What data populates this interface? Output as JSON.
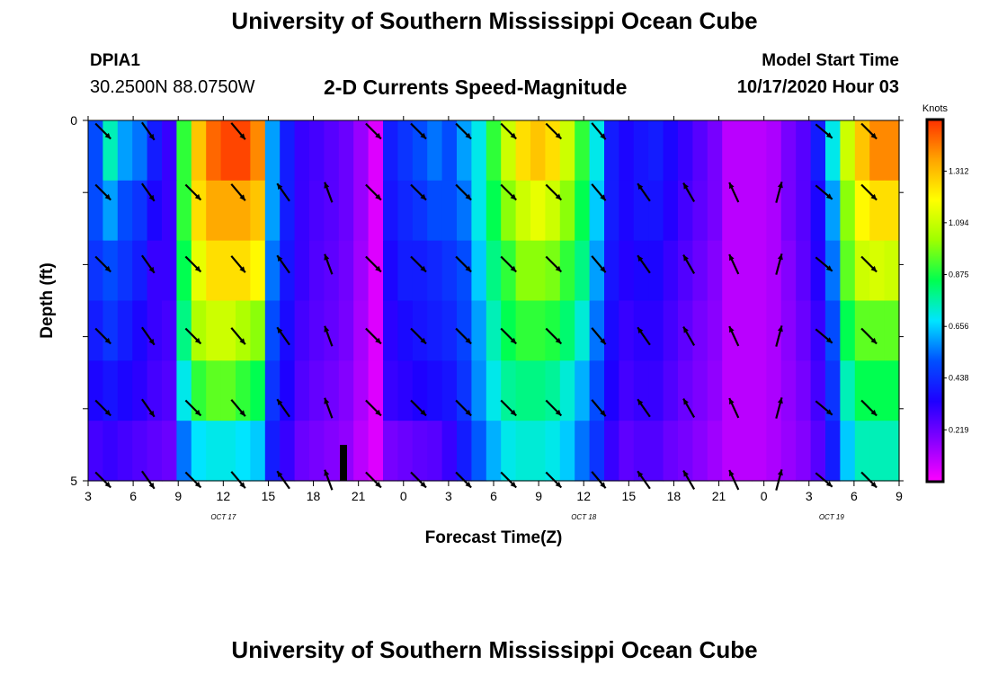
{
  "header": {
    "title": "University of Southern Mississippi Ocean Cube",
    "station_id": "DPIA1",
    "station_coords": "30.2500N 88.0750W",
    "chart_title": "2-D Currents Speed-Magnitude",
    "start_label": "Model Start Time",
    "start_value": "10/17/2020 Hour 03"
  },
  "footer": {
    "title": "University of Southern Mississippi Ocean Cube"
  },
  "colors": {
    "scale": [
      "#ff00ff",
      "#8a00ff",
      "#1e00ff",
      "#0050ff",
      "#00e5ff",
      "#00ff50",
      "#9eff00",
      "#ffff00",
      "#ffa500",
      "#ff3000"
    ],
    "arrow": "#000000",
    "marker": "#000000"
  },
  "chart_data": {
    "type": "heatmap",
    "title": "2-D Currents Speed-Magnitude",
    "xlabel": "Forecast Time(Z)",
    "ylabel": "Depth (ft)",
    "units": "Knots",
    "x_tick_labels": [
      "3",
      "6",
      "9",
      "12",
      "15",
      "18",
      "21",
      "0",
      "3",
      "6",
      "9",
      "12",
      "15",
      "18",
      "21",
      "0",
      "3",
      "6",
      "9"
    ],
    "x_tick_hours": [
      0,
      3,
      6,
      9,
      12,
      15,
      18,
      21,
      24,
      27,
      30,
      33,
      36,
      39,
      42,
      45,
      48,
      51,
      54
    ],
    "x_range_hours": [
      0,
      54
    ],
    "date_labels": [
      {
        "text": "OCT 17",
        "hour": 9
      },
      {
        "text": "OCT 18",
        "hour": 33
      },
      {
        "text": "OCT 19",
        "hour": 49.5
      }
    ],
    "y_tick_labels": [
      "0",
      "5"
    ],
    "y_range": [
      0,
      5
    ],
    "colorbar_ticks": [
      0.219,
      0.438,
      0.656,
      0.875,
      1.094,
      1.312
    ],
    "colorbar_tick_labels": [
      "0.219",
      "0.438",
      "0.656",
      "0.875",
      "1.094",
      "1.312"
    ],
    "colorbar_range": [
      0,
      1.53
    ],
    "now_marker_hour": 17,
    "depth_layers": 5,
    "time_step_hours": 1,
    "speed_rows": [
      [
        0.5,
        0.75,
        0.6,
        0.55,
        0.4,
        0.3,
        0.9,
        1.3,
        1.45,
        1.5,
        1.5,
        1.4,
        0.6,
        0.4,
        0.3,
        0.28,
        0.25,
        0.22,
        0.15,
        0.05,
        0.4,
        0.45,
        0.5,
        0.55,
        0.5,
        0.6,
        0.7,
        0.9,
        1.1,
        1.25,
        1.3,
        1.25,
        1.1,
        0.9,
        0.7,
        0.4,
        0.35,
        0.38,
        0.4,
        0.35,
        0.3,
        0.25,
        0.2,
        0.1,
        0.1,
        0.1,
        0.12,
        0.2,
        0.25,
        0.4,
        0.7,
        1.1,
        1.3,
        1.4,
        1.4
      ],
      [
        0.5,
        0.6,
        0.5,
        0.45,
        0.35,
        0.3,
        0.9,
        1.25,
        1.35,
        1.35,
        1.35,
        1.3,
        0.6,
        0.4,
        0.3,
        0.27,
        0.25,
        0.22,
        0.15,
        0.05,
        0.38,
        0.42,
        0.45,
        0.5,
        0.5,
        0.55,
        0.7,
        0.85,
        1.0,
        1.1,
        1.15,
        1.1,
        1.0,
        0.85,
        0.65,
        0.4,
        0.35,
        0.38,
        0.38,
        0.33,
        0.28,
        0.24,
        0.2,
        0.1,
        0.1,
        0.1,
        0.12,
        0.2,
        0.25,
        0.35,
        0.6,
        1.0,
        1.2,
        1.25,
        1.25
      ],
      [
        0.45,
        0.5,
        0.45,
        0.4,
        0.3,
        0.3,
        0.85,
        1.15,
        1.25,
        1.25,
        1.25,
        1.2,
        0.55,
        0.38,
        0.3,
        0.26,
        0.24,
        0.21,
        0.14,
        0.05,
        0.35,
        0.4,
        0.4,
        0.42,
        0.45,
        0.5,
        0.65,
        0.8,
        0.9,
        1.0,
        1.0,
        0.98,
        0.9,
        0.8,
        0.6,
        0.38,
        0.33,
        0.35,
        0.35,
        0.3,
        0.26,
        0.22,
        0.18,
        0.1,
        0.1,
        0.1,
        0.12,
        0.18,
        0.24,
        0.33,
        0.55,
        0.95,
        1.1,
        1.12,
        1.1
      ],
      [
        0.4,
        0.45,
        0.4,
        0.35,
        0.3,
        0.28,
        0.8,
        1.05,
        1.1,
        1.1,
        1.05,
        1.0,
        0.5,
        0.36,
        0.28,
        0.25,
        0.23,
        0.2,
        0.13,
        0.05,
        0.32,
        0.36,
        0.38,
        0.4,
        0.42,
        0.48,
        0.6,
        0.75,
        0.85,
        0.9,
        0.9,
        0.88,
        0.82,
        0.72,
        0.55,
        0.36,
        0.3,
        0.32,
        0.32,
        0.28,
        0.24,
        0.2,
        0.17,
        0.1,
        0.1,
        0.1,
        0.12,
        0.17,
        0.22,
        0.3,
        0.5,
        0.85,
        0.95,
        0.95,
        0.95
      ],
      [
        0.35,
        0.38,
        0.35,
        0.32,
        0.28,
        0.26,
        0.7,
        0.9,
        0.95,
        0.95,
        0.9,
        0.85,
        0.45,
        0.34,
        0.26,
        0.23,
        0.21,
        0.18,
        0.12,
        0.05,
        0.3,
        0.32,
        0.34,
        0.36,
        0.38,
        0.45,
        0.58,
        0.7,
        0.78,
        0.8,
        0.8,
        0.78,
        0.72,
        0.62,
        0.5,
        0.34,
        0.28,
        0.3,
        0.3,
        0.26,
        0.22,
        0.19,
        0.16,
        0.1,
        0.1,
        0.1,
        0.12,
        0.16,
        0.2,
        0.28,
        0.45,
        0.75,
        0.85,
        0.85,
        0.85
      ],
      [
        0.28,
        0.3,
        0.28,
        0.26,
        0.24,
        0.22,
        0.55,
        0.68,
        0.7,
        0.7,
        0.68,
        0.65,
        0.4,
        0.3,
        0.22,
        0.2,
        0.18,
        0.16,
        0.1,
        0.05,
        0.2,
        0.22,
        0.24,
        0.25,
        0.3,
        0.4,
        0.52,
        0.62,
        0.7,
        0.72,
        0.72,
        0.7,
        0.65,
        0.55,
        0.45,
        0.3,
        0.24,
        0.26,
        0.26,
        0.22,
        0.2,
        0.17,
        0.14,
        0.1,
        0.1,
        0.1,
        0.12,
        0.15,
        0.18,
        0.25,
        0.4,
        0.65,
        0.75,
        0.75,
        0.75
      ]
    ],
    "vectors": [
      {
        "hour": 1,
        "dir": 135
      },
      {
        "hour": 4,
        "dir": 145
      },
      {
        "hour": 7,
        "dir": 135
      },
      {
        "hour": 10,
        "dir": 140
      },
      {
        "hour": 13,
        "dir": 325
      },
      {
        "hour": 16,
        "dir": 340
      },
      {
        "hour": 19,
        "dir": 135
      },
      {
        "hour": 22,
        "dir": 135
      },
      {
        "hour": 25,
        "dir": 135
      },
      {
        "hour": 28,
        "dir": 135
      },
      {
        "hour": 31,
        "dir": 135
      },
      {
        "hour": 34,
        "dir": 140
      },
      {
        "hour": 37,
        "dir": 325
      },
      {
        "hour": 40,
        "dir": 330
      },
      {
        "hour": 43,
        "dir": 335
      },
      {
        "hour": 46,
        "dir": 15
      },
      {
        "hour": 49,
        "dir": 130
      },
      {
        "hour": 52,
        "dir": 135
      }
    ],
    "vector_top_row_hours": [
      1,
      4,
      10,
      19,
      22,
      25,
      28,
      31,
      34,
      49,
      52
    ]
  }
}
